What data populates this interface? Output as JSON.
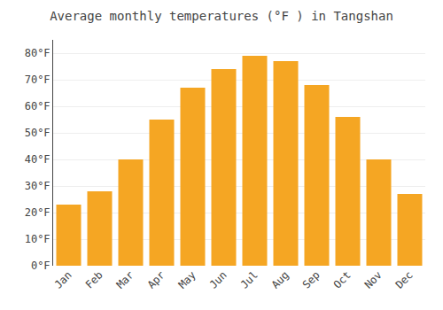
{
  "chart_data": {
    "type": "bar",
    "title": "Average monthly temperatures (°F ) in Tangshan",
    "categories": [
      "Jan",
      "Feb",
      "Mar",
      "Apr",
      "May",
      "Jun",
      "Jul",
      "Aug",
      "Sep",
      "Oct",
      "Nov",
      "Dec"
    ],
    "values": [
      23,
      28,
      40,
      55,
      67,
      74,
      79,
      77,
      68,
      56,
      40,
      27
    ],
    "color": "#F5A623",
    "ylim": [
      0,
      85
    ],
    "yticks": [
      {
        "value": 0,
        "label": "0°F"
      },
      {
        "value": 10,
        "label": "10°F"
      },
      {
        "value": 20,
        "label": "20°F"
      },
      {
        "value": 30,
        "label": "30°F"
      },
      {
        "value": 40,
        "label": "40°F"
      },
      {
        "value": 50,
        "label": "50°F"
      },
      {
        "value": 60,
        "label": "60°F"
      },
      {
        "value": 70,
        "label": "70°F"
      },
      {
        "value": 80,
        "label": "80°F"
      }
    ],
    "grid": true
  }
}
